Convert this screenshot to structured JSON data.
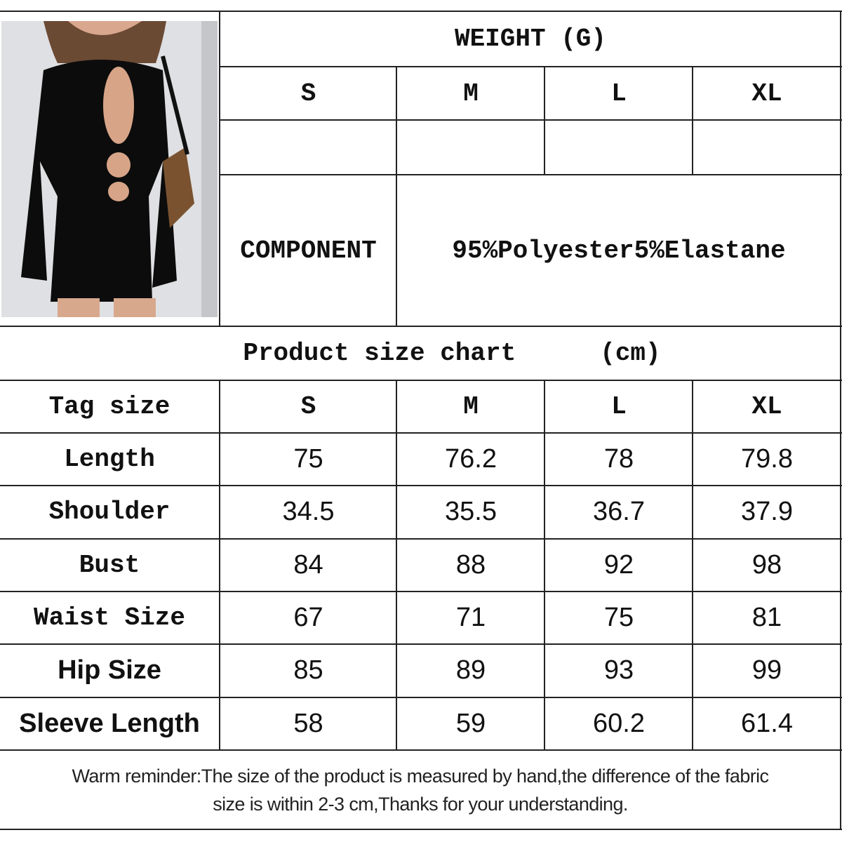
{
  "weight": {
    "title": "WEIGHT (G)",
    "sizes": [
      "S",
      "M",
      "L",
      "XL"
    ],
    "values": [
      "",
      "",
      "",
      ""
    ]
  },
  "component": {
    "label": "COMPONENT",
    "value": "95%Polyester5%Elastane"
  },
  "size_chart": {
    "title": "Product size chart",
    "unit": "(cm)",
    "header": {
      "label": "Tag size",
      "sizes": [
        "S",
        "M",
        "L",
        "XL"
      ]
    },
    "rows": [
      {
        "label": "Length",
        "values": [
          "75",
          "76.2",
          "78",
          "79.8"
        ]
      },
      {
        "label": "Shoulder",
        "values": [
          "34.5",
          "35.5",
          "36.7",
          "37.9"
        ]
      },
      {
        "label": "Bust",
        "values": [
          "84",
          "88",
          "92",
          "98"
        ]
      },
      {
        "label": "Waist Size",
        "values": [
          "67",
          "71",
          "75",
          "81"
        ]
      },
      {
        "label": "Hip Size",
        "values": [
          "85",
          "89",
          "93",
          "99"
        ]
      },
      {
        "label": "Sleeve Length",
        "values": [
          "58",
          "59",
          "60.2",
          "61.4"
        ]
      }
    ]
  },
  "reminder": {
    "line1": "Warm reminder:The size of the product is measured by hand,the difference of the fabric",
    "line2": "size is within 2-3 cm,Thanks for your understanding."
  }
}
